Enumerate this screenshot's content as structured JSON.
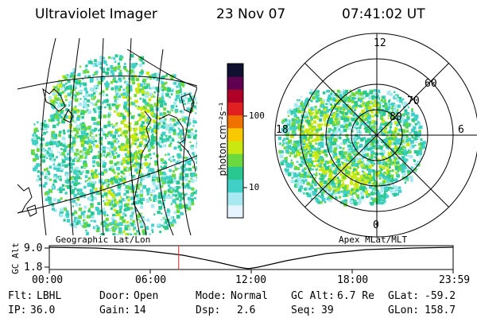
{
  "header": {
    "instrument": "Ultraviolet Imager",
    "date": "23 Nov 07",
    "time": "07:41:02 UT"
  },
  "colorbar": {
    "unit": "photon cm⁻²s⁻¹",
    "ticks": [
      "100",
      "10"
    ],
    "scale": "log",
    "colors": [
      "#e6f4ff",
      "#a8e8f0",
      "#40d0c8",
      "#28c890",
      "#6cd840",
      "#c8e810",
      "#f8c800",
      "#f07000",
      "#e02020",
      "#b00028",
      "#600050",
      "#101030"
    ]
  },
  "left_map": {
    "label": "Geographic Lat/Lon"
  },
  "right_polar": {
    "label": "Apex MLat/MLT",
    "mlt_labels": [
      "12",
      "18",
      "6",
      "0"
    ],
    "lat_labels": [
      "60",
      "70",
      "80"
    ]
  },
  "altitude_plot": {
    "ylabel": "GC Alt",
    "y_ticks": [
      "9.0",
      "1.8"
    ],
    "x_ticks": [
      "00:00",
      "06:00",
      "12:00",
      "18:00",
      "23:59"
    ],
    "current_time_marker": "07:41",
    "marker_color": "#ff2020"
  },
  "status": {
    "row1": [
      {
        "label": "Flt:",
        "value": "LBHL"
      },
      {
        "label": "Door:",
        "value": "Open"
      },
      {
        "label": "Mode:",
        "value": "Normal"
      },
      {
        "label": "GC Alt:",
        "value": "6.7 Re"
      },
      {
        "label": "GLat:",
        "value": "-59.2"
      }
    ],
    "row2": [
      {
        "label": "IP:",
        "value": "36.0"
      },
      {
        "label": "Gain:",
        "value": "14"
      },
      {
        "label": "Dsp:",
        "value": "2.6"
      },
      {
        "label": "Seq:",
        "value": "39"
      },
      {
        "label": "GLon:",
        "value": "158.7"
      }
    ]
  }
}
